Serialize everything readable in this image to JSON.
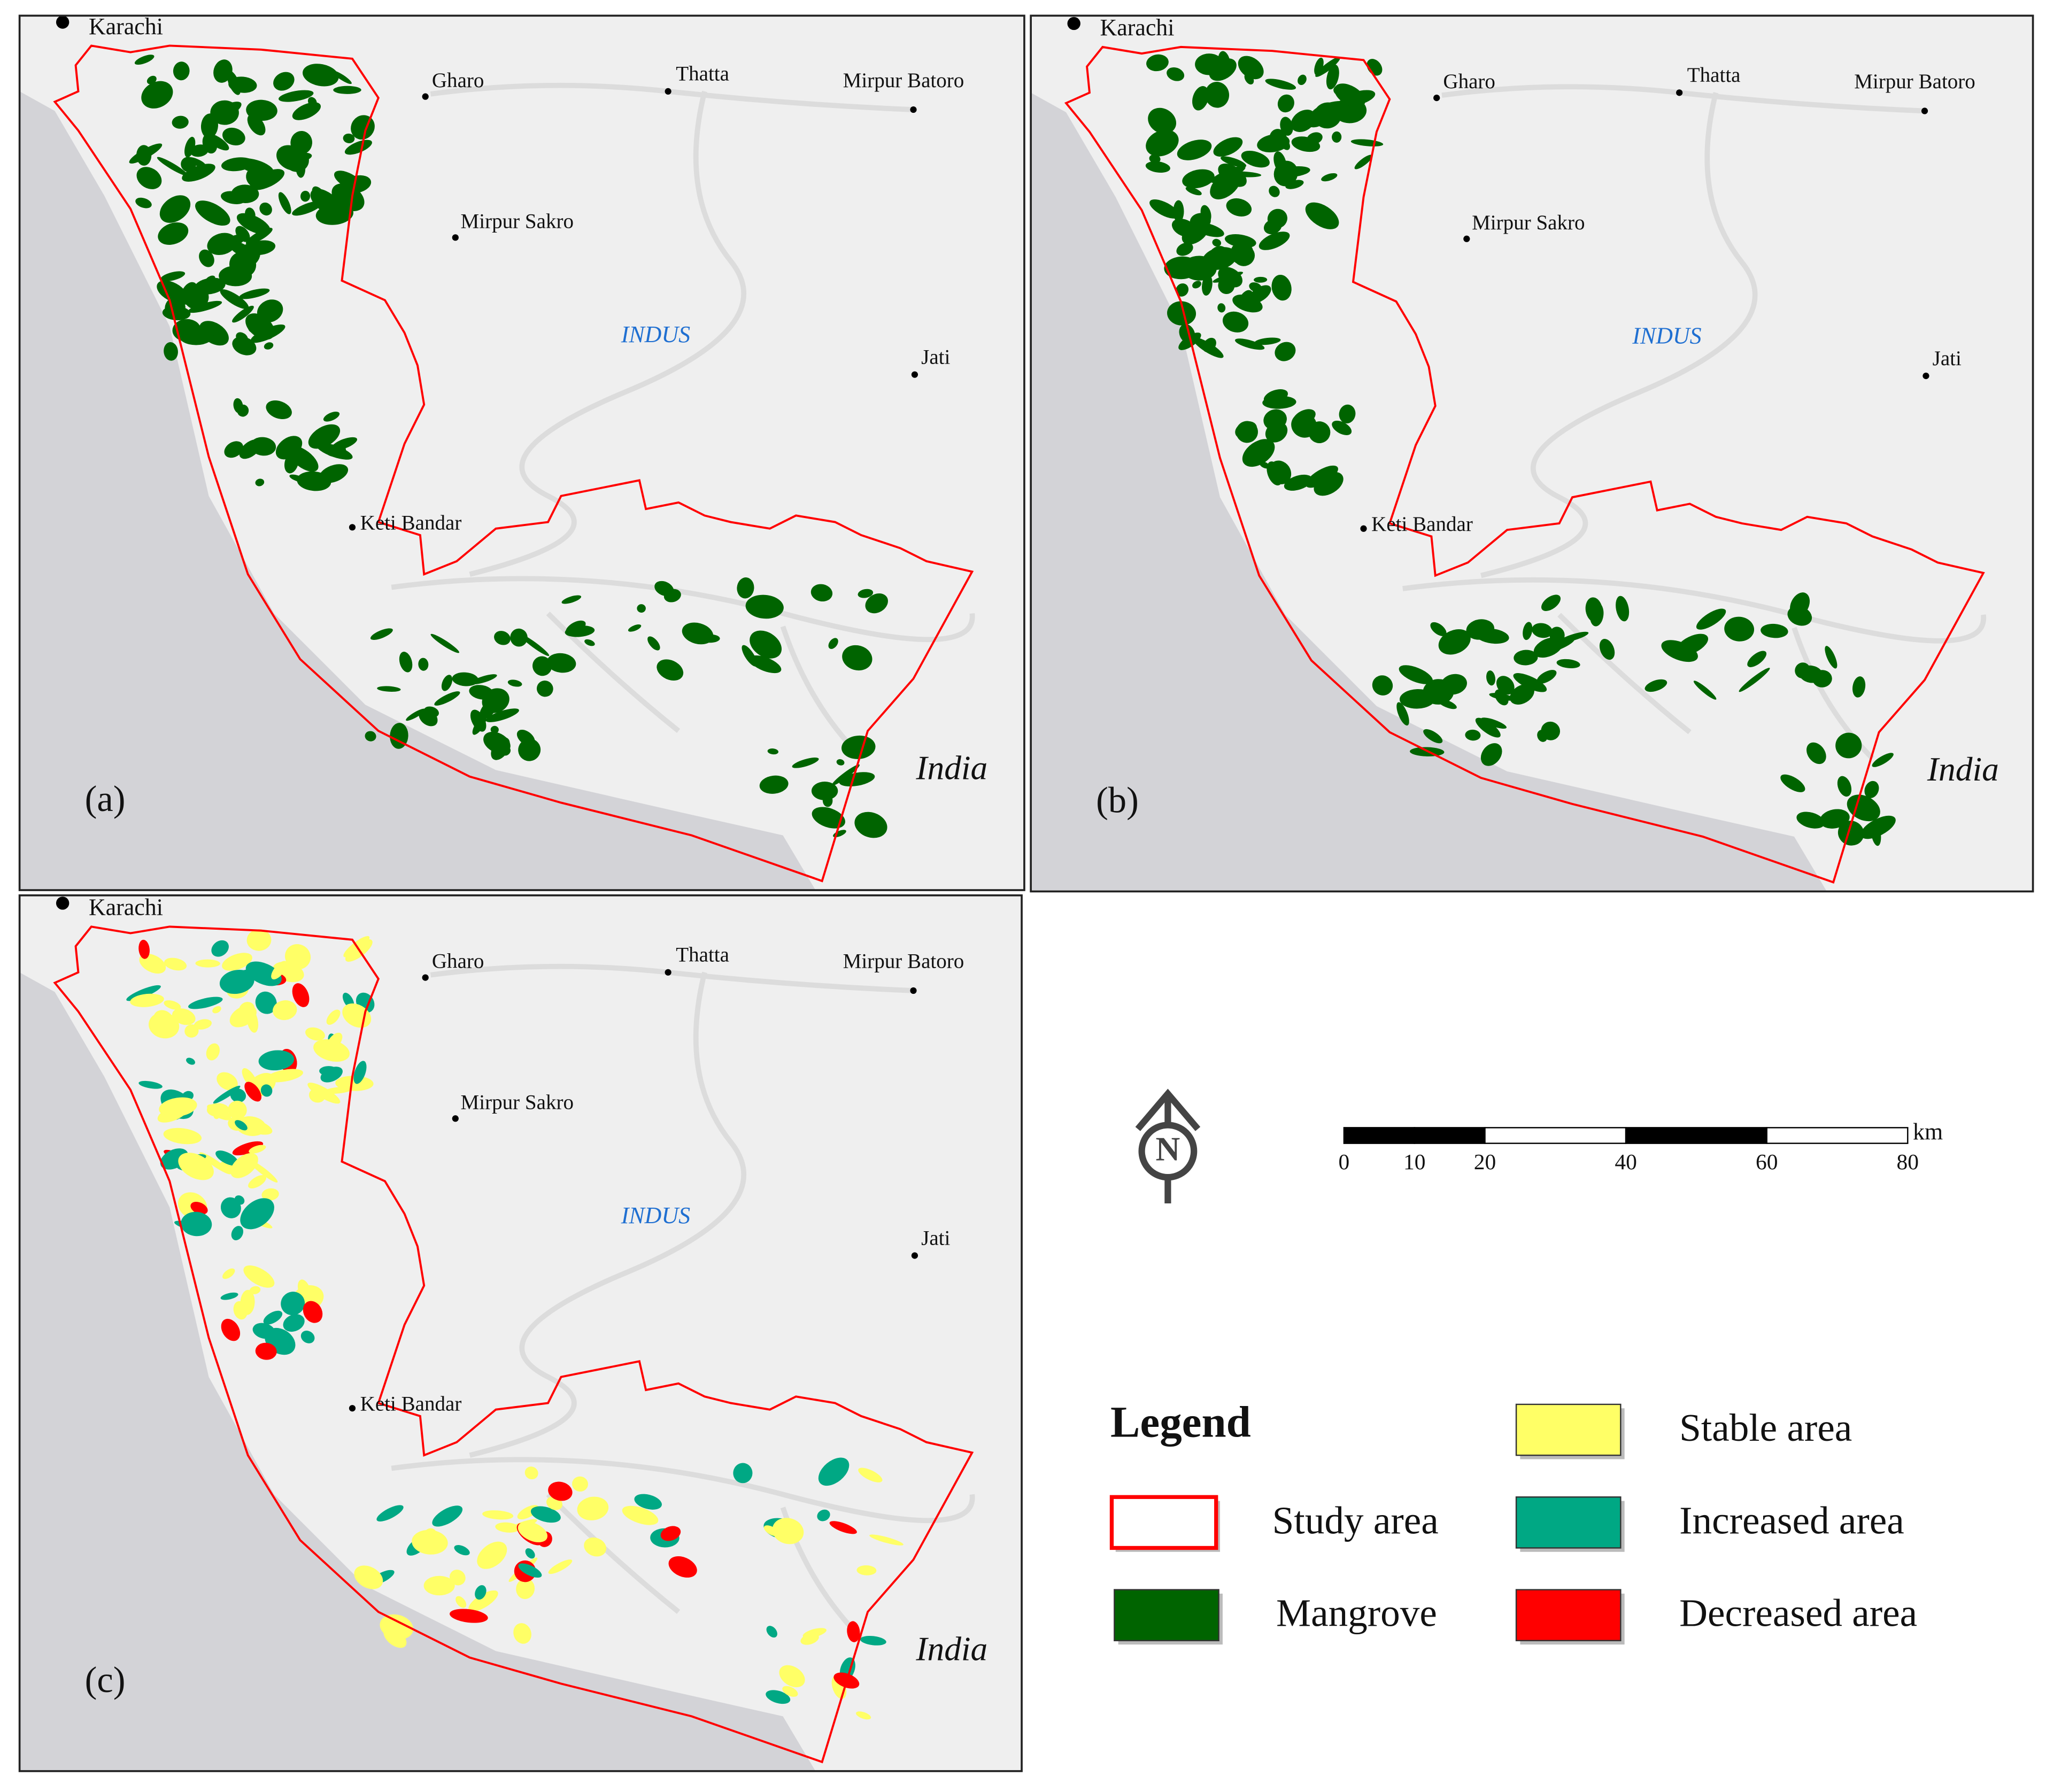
{
  "panels": [
    {
      "label": "(a)"
    },
    {
      "label": "(b)"
    },
    {
      "label": "(c)"
    }
  ],
  "places": [
    "Karachi",
    "Gharo",
    "Thatta",
    "Mirpur Batoro",
    "Mirpur Sakro",
    "Jati",
    "Keti Bandar"
  ],
  "river": "INDUS",
  "country": "India",
  "north": "N",
  "scale": {
    "ticks": [
      0,
      10,
      20,
      40,
      60,
      80
    ],
    "unit": "km"
  },
  "legend": {
    "title": "Legend",
    "items": [
      {
        "name": "Study area",
        "color": "#ff0000"
      },
      {
        "name": "Mangrove",
        "color": "#006400"
      },
      {
        "name": "Stable area",
        "color": "#ffff66"
      },
      {
        "name": "Increased area",
        "color": "#00a884"
      },
      {
        "name": "Decreased area",
        "color": "#ff0000"
      }
    ]
  }
}
